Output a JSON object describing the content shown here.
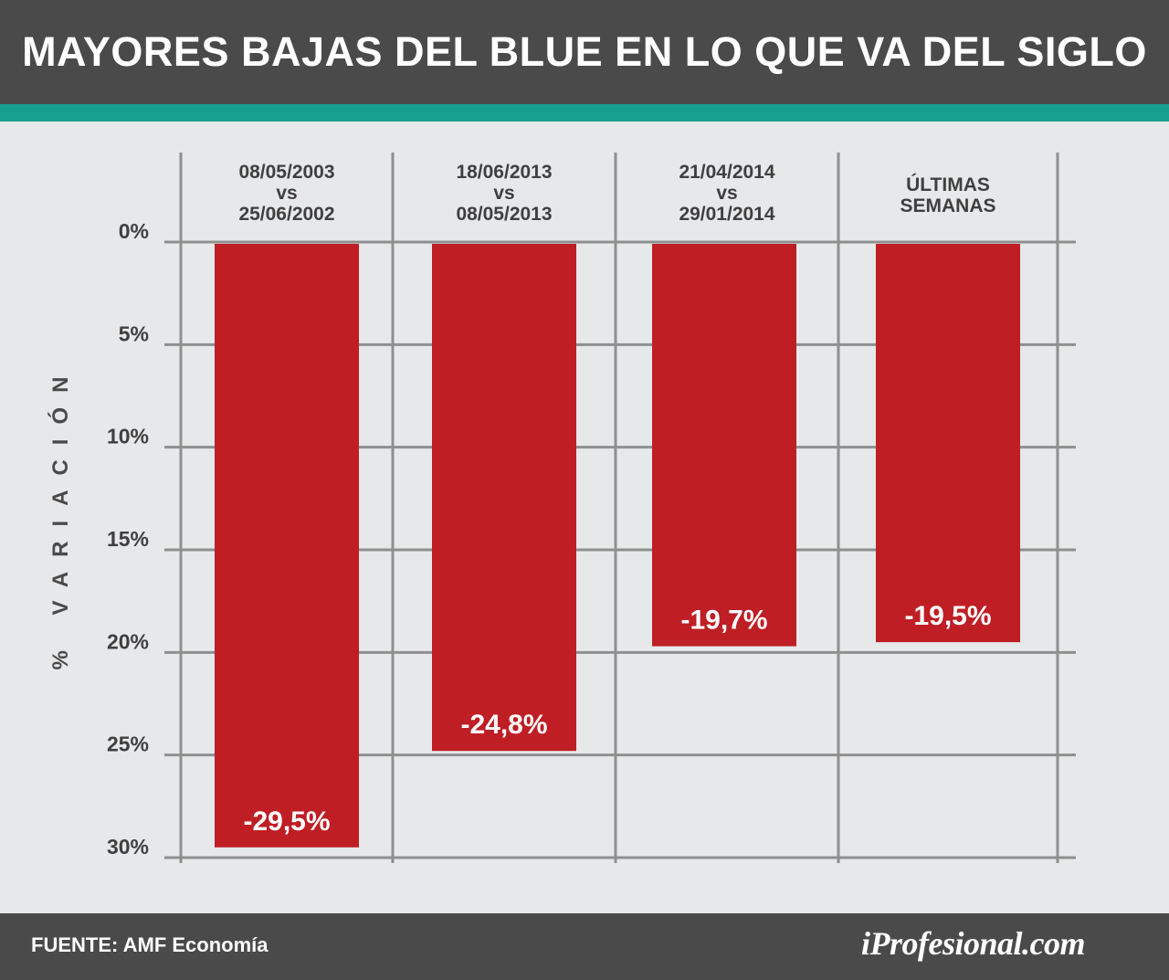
{
  "header": {
    "title": "MAYORES BAJAS DEL BLUE EN LO QUE VA DEL SIGLO"
  },
  "footer": {
    "source": "FUENTE: AMF Economía",
    "brand": "iProfesional.com"
  },
  "colors": {
    "bar": "#be1e24",
    "grid": "#8f8f8f",
    "header_bg": "#4a4a4b",
    "accent": "#17a08f",
    "plot_bg": "#e7e8e9"
  },
  "chart_data": {
    "type": "bar",
    "title": "MAYORES BAJAS DEL BLUE EN LO QUE VA DEL SIGLO",
    "ylabel": "% VARIACIÓN",
    "xlabel": "",
    "categories": [
      [
        "08/05/2003",
        "vs",
        "25/06/2002"
      ],
      [
        "18/06/2013",
        "vs",
        "08/05/2013"
      ],
      [
        "21/04/2014",
        "vs",
        "29/01/2014"
      ],
      [
        "ÚLTIMAS",
        "SEMANAS"
      ]
    ],
    "values": [
      -29.5,
      -24.8,
      -19.7,
      -19.5
    ],
    "value_labels": [
      "-29,5%",
      "-24,8%",
      "-19,7%",
      "-19,5%"
    ],
    "yticks": [
      0,
      5,
      10,
      15,
      20,
      25,
      30
    ],
    "ytick_labels": [
      "0%",
      "5%",
      "10%",
      "15%",
      "20%",
      "25%",
      "30%"
    ],
    "ylim": [
      0,
      30
    ],
    "axis_direction": "inverted",
    "grid": true,
    "legend": "none"
  }
}
